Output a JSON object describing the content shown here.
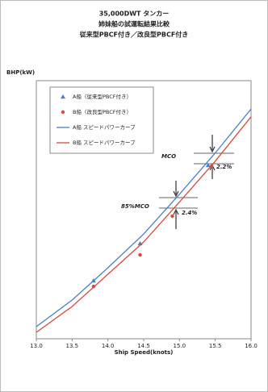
{
  "chart_data": {
    "type": "line",
    "title": [
      "35,000DWT タンカー",
      "姉妹船の試運転結果比較",
      "従来型PBCF付き／改良型PBCF付き"
    ],
    "xlabel": "Ship Speed(knots)",
    "ylabel": "BHP(kW)",
    "xlim": [
      13.0,
      16.0
    ],
    "ylim": [
      0,
      100
    ],
    "xticks": [
      {
        "value": 13.0,
        "label": "13.0"
      },
      {
        "value": 13.5,
        "label": "13.5"
      },
      {
        "value": 14.0,
        "label": "14.0"
      },
      {
        "value": 14.5,
        "label": "14.5"
      },
      {
        "value": 15.0,
        "label": "15.0"
      },
      {
        "value": 15.5,
        "label": "15.5"
      },
      {
        "value": 16.0,
        "label": "16.0"
      }
    ],
    "series": [
      {
        "name": "A船（従来型PBCF付き）",
        "color": "#4a7ec8",
        "marker": "triangle",
        "x": [
          13.8,
          14.45,
          15.4
        ],
        "values": [
          22.5,
          36.9,
          67.2
        ]
      },
      {
        "name": "B船（改良型PBCF付き）",
        "color": "#d9483b",
        "marker": "circle",
        "x": [
          13.8,
          14.45,
          14.9,
          15.45
        ],
        "values": [
          20.3,
          32.5,
          47.5,
          66.9
        ]
      },
      {
        "name": "A船 スピードパワーカーブ",
        "color": "#4a7ec8",
        "marker": "line",
        "x": [
          13.0,
          13.5,
          14.0,
          14.5,
          15.0,
          15.5,
          16.0
        ],
        "values": [
          4.7,
          15.0,
          27.5,
          40.6,
          56.0,
          72.0,
          89.0
        ]
      },
      {
        "name": "B船 スピードパワーカーブ",
        "color": "#d9483b",
        "marker": "line",
        "x": [
          13.0,
          13.5,
          14.0,
          14.5,
          15.0,
          15.5,
          16.0
        ],
        "values": [
          2.5,
          12.5,
          25.0,
          37.5,
          53.0,
          68.8,
          86.0
        ]
      }
    ],
    "annotations": [
      "MCO",
      "85%MCO",
      "2.2%",
      "2.4%"
    ]
  }
}
